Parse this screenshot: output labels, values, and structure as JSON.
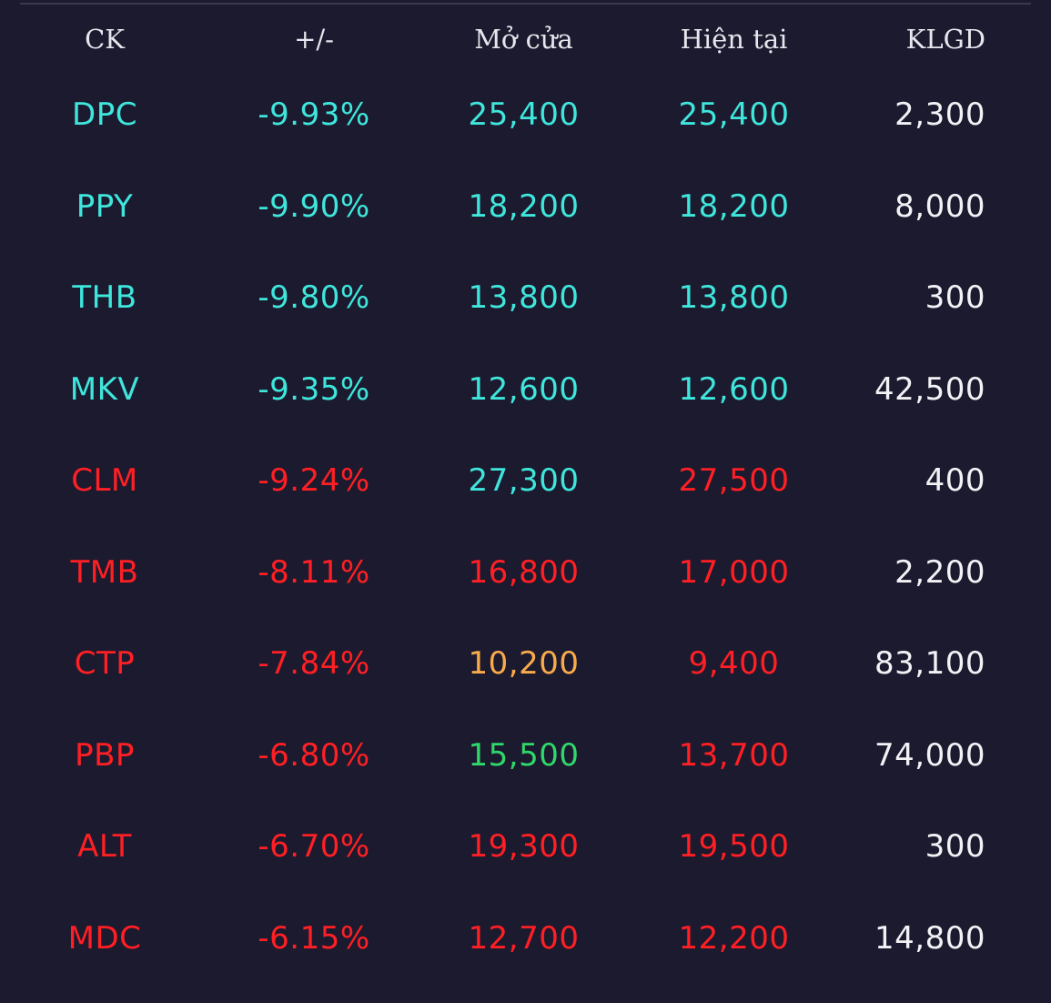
{
  "colors": {
    "background": "#1c1a2e",
    "floor": "#3ee6dc",
    "down": "#ff1f24",
    "reference": "#f9ab4a",
    "up": "#2fd86a",
    "neutral": "#f2f2f6"
  },
  "header": {
    "ck": "CK",
    "change": "+/-",
    "open": "Mở cửa",
    "current": "Hiện tại",
    "volume": "KLGD"
  },
  "rows": [
    {
      "ck": "DPC",
      "ck_color": "cyan",
      "change": "-9.93%",
      "change_color": "cyan",
      "open": "25,400",
      "open_color": "cyan",
      "current": "25,400",
      "current_color": "cyan",
      "volume": "2,300"
    },
    {
      "ck": "PPY",
      "ck_color": "cyan",
      "change": "-9.90%",
      "change_color": "cyan",
      "open": "18,200",
      "open_color": "cyan",
      "current": "18,200",
      "current_color": "cyan",
      "volume": "8,000"
    },
    {
      "ck": "THB",
      "ck_color": "cyan",
      "change": "-9.80%",
      "change_color": "cyan",
      "open": "13,800",
      "open_color": "cyan",
      "current": "13,800",
      "current_color": "cyan",
      "volume": "300"
    },
    {
      "ck": "MKV",
      "ck_color": "cyan",
      "change": "-9.35%",
      "change_color": "cyan",
      "open": "12,600",
      "open_color": "cyan",
      "current": "12,600",
      "current_color": "cyan",
      "volume": "42,500"
    },
    {
      "ck": "CLM",
      "ck_color": "red",
      "change": "-9.24%",
      "change_color": "red",
      "open": "27,300",
      "open_color": "cyan",
      "current": "27,500",
      "current_color": "red",
      "volume": "400"
    },
    {
      "ck": "TMB",
      "ck_color": "red",
      "change": "-8.11%",
      "change_color": "red",
      "open": "16,800",
      "open_color": "red",
      "current": "17,000",
      "current_color": "red",
      "volume": "2,200"
    },
    {
      "ck": "CTP",
      "ck_color": "red",
      "change": "-7.84%",
      "change_color": "red",
      "open": "10,200",
      "open_color": "orange",
      "current": "9,400",
      "current_color": "red",
      "volume": "83,100"
    },
    {
      "ck": "PBP",
      "ck_color": "red",
      "change": "-6.80%",
      "change_color": "red",
      "open": "15,500",
      "open_color": "green",
      "current": "13,700",
      "current_color": "red",
      "volume": "74,000"
    },
    {
      "ck": "ALT",
      "ck_color": "red",
      "change": "-6.70%",
      "change_color": "red",
      "open": "19,300",
      "open_color": "red",
      "current": "19,500",
      "current_color": "red",
      "volume": "300"
    },
    {
      "ck": "MDC",
      "ck_color": "red",
      "change": "-6.15%",
      "change_color": "red",
      "open": "12,700",
      "open_color": "red",
      "current": "12,200",
      "current_color": "red",
      "volume": "14,800"
    }
  ]
}
